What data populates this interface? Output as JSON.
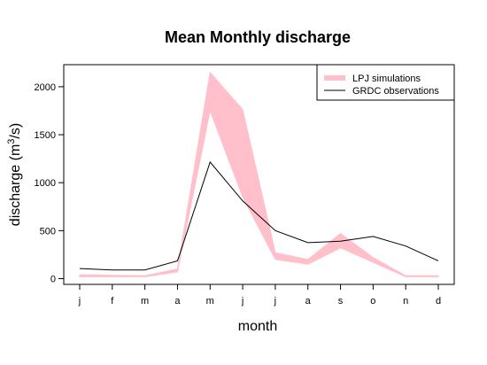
{
  "chart_data": {
    "type": "area",
    "title": "Mean Monthly discharge",
    "xlabel": "month",
    "ylabel_main": "discharge (m",
    "ylabel_sup": "3",
    "ylabel_end": "/s)",
    "categories": [
      "j",
      "f",
      "m",
      "a",
      "m",
      "j",
      "j",
      "a",
      "s",
      "o",
      "n",
      "d"
    ],
    "y_ticks": [
      0,
      500,
      1000,
      1500,
      2000
    ],
    "ylim": [
      -60,
      2230
    ],
    "grid": false,
    "legend_placement": "top-right",
    "series": [
      {
        "name": "LPJ simulations",
        "kind": "band",
        "color": "#FFC0CB",
        "upper": [
          40,
          35,
          30,
          100,
          2150,
          1760,
          270,
          200,
          470,
          220,
          30,
          30
        ],
        "lower": [
          20,
          20,
          20,
          70,
          1750,
          850,
          200,
          150,
          320,
          170,
          20,
          20
        ]
      },
      {
        "name": "GRDC observations",
        "kind": "line",
        "color": "#000000",
        "values": [
          105,
          90,
          90,
          185,
          1215,
          810,
          500,
          375,
          390,
          440,
          340,
          185
        ]
      }
    ]
  }
}
